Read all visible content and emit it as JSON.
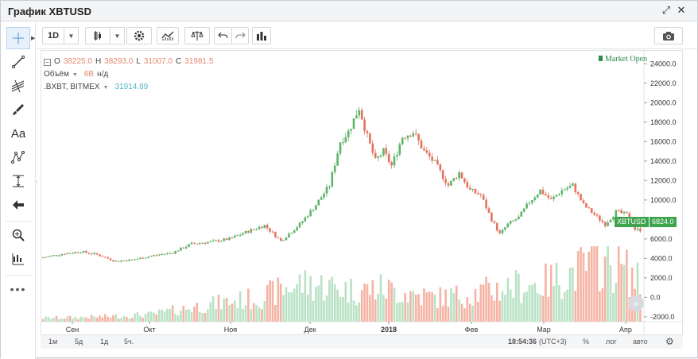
{
  "window": {
    "title": "График XBTUSD"
  },
  "toolbar": {
    "interval": "1D"
  },
  "legend": {
    "ohlc": {
      "o_label": "O",
      "o": "38225.0",
      "h_label": "H",
      "h": "38293.0",
      "l_label": "L",
      "l": "31007.0",
      "c_label": "C",
      "c": "31981.5"
    },
    "volume": {
      "label": "Объём",
      "value": "6B",
      "na": "н/д"
    },
    "index": {
      "label": ".BXBT, BITMEX",
      "value": "31914.89"
    }
  },
  "market_status": "Market Open",
  "price_labels": {
    "symbol": "XBTUSD",
    "last": "6824.0"
  },
  "bottom": {
    "ranges": [
      "1м",
      "5д",
      "1д",
      "5ч."
    ],
    "time": "18:54:36",
    "tz": "(UTC+3)",
    "percent": "%",
    "log": "лог",
    "auto": "авто"
  },
  "colors": {
    "up": "#5cb46a",
    "down": "#e3735d",
    "vol_up": "#b9e2c4",
    "vol_down": "#f6b3a4"
  },
  "chart_data": {
    "type": "candlestick",
    "x_ticks": [
      "Сен",
      "Окт",
      "Ноя",
      "Дек",
      "2018",
      "Фев",
      "Мар",
      "Апр"
    ],
    "y_ticks": [
      "24000.0",
      "22000.0",
      "20000.0",
      "18000.0",
      "16000.0",
      "14000.0",
      "12000.0",
      "10000.0",
      "8000.0",
      "6000.0",
      "4000.0",
      "2000.0",
      "0.0",
      "-2000.0"
    ],
    "ylim": [
      -2500,
      25000
    ],
    "price_path": [
      [
        0,
        4100
      ],
      [
        8,
        4500
      ],
      [
        14,
        4700
      ],
      [
        20,
        4400
      ],
      [
        27,
        3700
      ],
      [
        34,
        3900
      ],
      [
        41,
        4300
      ],
      [
        48,
        4600
      ],
      [
        55,
        5500
      ],
      [
        62,
        5700
      ],
      [
        69,
        6000
      ],
      [
        76,
        6800
      ],
      [
        82,
        7400
      ],
      [
        88,
        5800
      ],
      [
        95,
        7500
      ],
      [
        101,
        9500
      ],
      [
        106,
        11500
      ],
      [
        110,
        16000
      ],
      [
        113,
        17000
      ],
      [
        117,
        19500
      ],
      [
        120,
        16500
      ],
      [
        123,
        14000
      ],
      [
        126,
        15000
      ],
      [
        129,
        13500
      ],
      [
        133,
        16500
      ],
      [
        137,
        17000
      ],
      [
        141,
        15000
      ],
      [
        145,
        13800
      ],
      [
        150,
        11500
      ],
      [
        154,
        12800
      ],
      [
        158,
        11000
      ],
      [
        162,
        10500
      ],
      [
        166,
        8000
      ],
      [
        169,
        6500
      ],
      [
        172,
        7500
      ],
      [
        176,
        8200
      ],
      [
        180,
        9800
      ],
      [
        184,
        11000
      ],
      [
        188,
        10000
      ],
      [
        192,
        11000
      ],
      [
        196,
        11500
      ],
      [
        200,
        9500
      ],
      [
        204,
        8500
      ],
      [
        208,
        7500
      ],
      [
        212,
        8800
      ],
      [
        216,
        8500
      ],
      [
        219,
        7000
      ],
      [
        222,
        6900
      ]
    ],
    "volume_path": [
      [
        0,
        150
      ],
      [
        20,
        200
      ],
      [
        40,
        300
      ],
      [
        60,
        700
      ],
      [
        80,
        1000
      ],
      [
        95,
        1600
      ],
      [
        105,
        1500
      ],
      [
        115,
        1300
      ],
      [
        125,
        1400
      ],
      [
        135,
        1200
      ],
      [
        145,
        1000
      ],
      [
        155,
        1100
      ],
      [
        165,
        1300
      ],
      [
        175,
        1500
      ],
      [
        185,
        1600
      ],
      [
        195,
        2000
      ],
      [
        205,
        2500
      ],
      [
        215,
        2200
      ],
      [
        222,
        1500
      ]
    ]
  }
}
